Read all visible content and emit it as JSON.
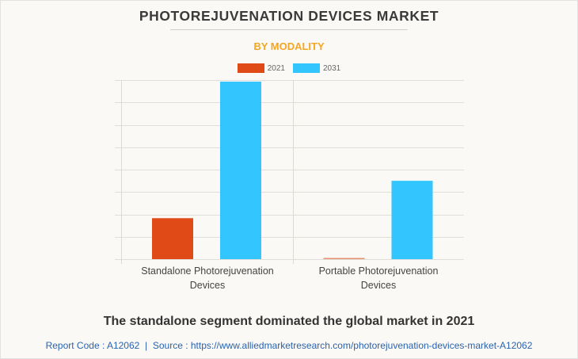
{
  "chart_data": {
    "type": "bar",
    "title": "PHOTOREJUVENATION DEVICES MARKET",
    "subtitle": "BY MODALITY",
    "categories": [
      [
        "Standalone Photorejuvenation",
        "Devices"
      ],
      [
        "Portable Photorejuvenation",
        "Devices"
      ]
    ],
    "series": [
      {
        "name": "2021",
        "color": "#e04a17",
        "values": [
          1.83,
          0.04
        ]
      },
      {
        "name": "2031",
        "color": "#33c5fd",
        "values": [
          7.93,
          3.5
        ]
      }
    ],
    "xlabel": "",
    "ylabel": "",
    "ylim": [
      0,
      8
    ],
    "grid_steps": 8,
    "grid": true,
    "legend_position": "top-center"
  },
  "caption": "The standalone segment dominated the global market in 2021",
  "footer": {
    "report_code": "Report Code : A12062",
    "separator": "|",
    "source": "Source : https://www.alliedmarketresearch.com/photorejuvenation-devices-market-A12062"
  }
}
